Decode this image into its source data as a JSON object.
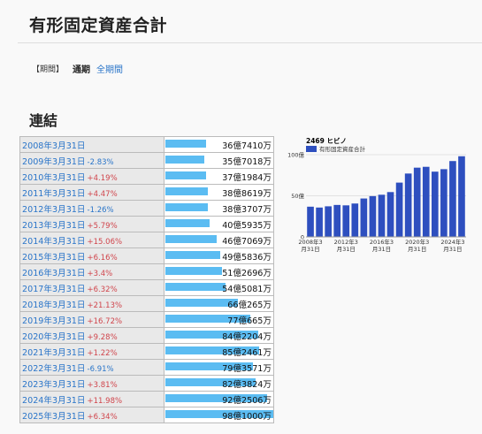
{
  "page": {
    "title": "有形固定資産合計",
    "period_label": "【期間】",
    "period_current": "通期",
    "period_link": "全期間",
    "section_title": "連結"
  },
  "table": {
    "rows": [
      {
        "date": "2008年3月31日",
        "change": "",
        "value": "36億7410万",
        "amount": 36.741
      },
      {
        "date": "2009年3月31日",
        "change": "-2.83%",
        "value": "35億7018万",
        "amount": 35.7018
      },
      {
        "date": "2010年3月31日",
        "change": "+4.19%",
        "value": "37億1984万",
        "amount": 37.1984
      },
      {
        "date": "2011年3月31日",
        "change": "+4.47%",
        "value": "38億8619万",
        "amount": 38.8619
      },
      {
        "date": "2012年3月31日",
        "change": "-1.26%",
        "value": "38億3707万",
        "amount": 38.3707
      },
      {
        "date": "2013年3月31日",
        "change": "+5.79%",
        "value": "40億5935万",
        "amount": 40.5935
      },
      {
        "date": "2014年3月31日",
        "change": "+15.06%",
        "value": "46億7069万",
        "amount": 46.7069
      },
      {
        "date": "2015年3月31日",
        "change": "+6.16%",
        "value": "49億5836万",
        "amount": 49.5836
      },
      {
        "date": "2016年3月31日",
        "change": "+3.4%",
        "value": "51億2696万",
        "amount": 51.2696
      },
      {
        "date": "2017年3月31日",
        "change": "+6.32%",
        "value": "54億5081万",
        "amount": 54.5081
      },
      {
        "date": "2018年3月31日",
        "change": "+21.13%",
        "value": "66億265万",
        "amount": 66.0265
      },
      {
        "date": "2019年3月31日",
        "change": "+16.72%",
        "value": "77億665万",
        "amount": 77.0665
      },
      {
        "date": "2020年3月31日",
        "change": "+9.28%",
        "value": "84億2204万",
        "amount": 84.2204
      },
      {
        "date": "2021年3月31日",
        "change": "+1.22%",
        "value": "85億2461万",
        "amount": 85.2461
      },
      {
        "date": "2022年3月31日",
        "change": "-6.91%",
        "value": "79億3571万",
        "amount": 79.3571
      },
      {
        "date": "2023年3月31日",
        "change": "+3.81%",
        "value": "82億3824万",
        "amount": 82.3824
      },
      {
        "date": "2024年3月31日",
        "change": "+11.98%",
        "value": "92億2506万",
        "amount": 92.2506
      },
      {
        "date": "2025年3月31日",
        "change": "+6.34%",
        "value": "98億1000万",
        "amount": 98.1
      }
    ]
  },
  "colors": {
    "bar_table": "#5bbcf2",
    "bar_chart": "#2e4fbf",
    "link": "#2a75c9",
    "positive": "#d0454c",
    "negative": "#2a75c9"
  },
  "chart_data": {
    "type": "bar",
    "title": "2469 ヒビノ",
    "series": [
      {
        "name": "有形固定資産合計",
        "values": [
          36.741,
          35.7018,
          37.1984,
          38.8619,
          38.3707,
          40.5935,
          46.7069,
          49.5836,
          51.2696,
          54.5081,
          66.0265,
          77.0665,
          84.2204,
          85.2461,
          79.3571,
          82.3824,
          92.2506,
          98.1
        ]
      }
    ],
    "categories": [
      "2008年3月31日",
      "2009年3月31日",
      "2010年3月31日",
      "2011年3月31日",
      "2012年3月31日",
      "2013年3月31日",
      "2014年3月31日",
      "2015年3月31日",
      "2016年3月31日",
      "2017年3月31日",
      "2018年3月31日",
      "2019年3月31日",
      "2020年3月31日",
      "2021年3月31日",
      "2022年3月31日",
      "2023年3月31日",
      "2024年3月31日",
      "2025年3月31日"
    ],
    "y_ticks": [
      "0",
      "50億",
      "100億"
    ],
    "x_ticks": [
      {
        "l1": "2008年3",
        "l2": "月31日"
      },
      {
        "l1": "2012年3",
        "l2": "月31日"
      },
      {
        "l1": "2016年3",
        "l2": "月31日"
      },
      {
        "l1": "2020年3",
        "l2": "月31日"
      },
      {
        "l1": "2024年3",
        "l2": "月31日"
      }
    ],
    "ylim": [
      0,
      100
    ],
    "legend_position": "top-left"
  }
}
